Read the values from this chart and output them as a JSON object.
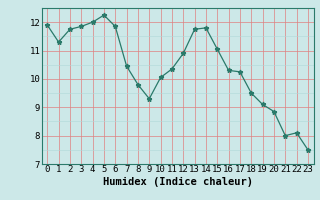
{
  "x": [
    0,
    1,
    2,
    3,
    4,
    5,
    6,
    7,
    8,
    9,
    10,
    11,
    12,
    13,
    14,
    15,
    16,
    17,
    18,
    19,
    20,
    21,
    22,
    23
  ],
  "y": [
    11.9,
    11.3,
    11.75,
    11.85,
    12.0,
    12.25,
    11.85,
    10.45,
    9.8,
    9.3,
    10.05,
    10.35,
    10.9,
    11.75,
    11.8,
    11.05,
    10.3,
    10.25,
    9.5,
    9.1,
    8.85,
    8.0,
    8.1,
    7.5
  ],
  "line_color": "#2a7a6a",
  "bg_color": "#cce8e8",
  "grid_color_red": "#e08080",
  "grid_color_light": "#b0d8d8",
  "xlabel": "Humidex (Indice chaleur)",
  "ylim": [
    7,
    12.5
  ],
  "xlim": [
    -0.5,
    23.5
  ],
  "yticks": [
    7,
    8,
    9,
    10,
    11,
    12
  ],
  "xticks": [
    0,
    1,
    2,
    3,
    4,
    5,
    6,
    7,
    8,
    9,
    10,
    11,
    12,
    13,
    14,
    15,
    16,
    17,
    18,
    19,
    20,
    21,
    22,
    23
  ],
  "axis_fontsize": 6.5,
  "xlabel_fontsize": 7.5
}
